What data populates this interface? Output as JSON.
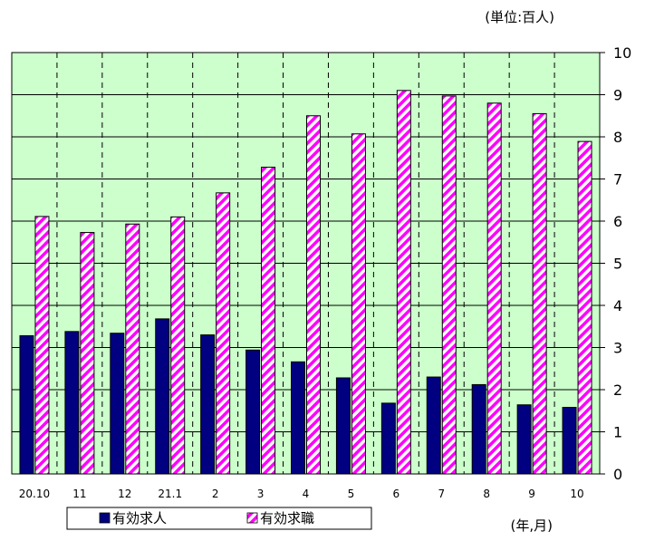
{
  "chart_data": {
    "type": "bar",
    "unit_label": "(単位:百人)",
    "xlabel": "(年,月)",
    "categories": [
      "20.10",
      "11",
      "12",
      "21.1",
      "2",
      "3",
      "4",
      "5",
      "6",
      "7",
      "8",
      "9",
      "10"
    ],
    "ylim": [
      0,
      10
    ],
    "y_ticks": [
      "0",
      "1",
      "2",
      "3",
      "4",
      "5",
      "6",
      "7",
      "8",
      "9",
      "10"
    ],
    "grid": true,
    "legend_position": "bottom",
    "background_color": "#ccffcc",
    "series": [
      {
        "name": "有効求人",
        "color": "#000080",
        "pattern": "solid",
        "values": [
          3.28,
          3.38,
          3.34,
          3.68,
          3.3,
          2.94,
          2.66,
          2.28,
          1.68,
          2.3,
          2.12,
          1.64,
          1.58
        ]
      },
      {
        "name": "有効求職",
        "color": "#ff00ff",
        "pattern": "diagonal-stripes",
        "values": [
          6.11,
          5.73,
          5.93,
          6.1,
          6.67,
          7.28,
          8.5,
          8.07,
          9.1,
          8.97,
          8.8,
          8.55,
          7.89
        ]
      }
    ]
  }
}
